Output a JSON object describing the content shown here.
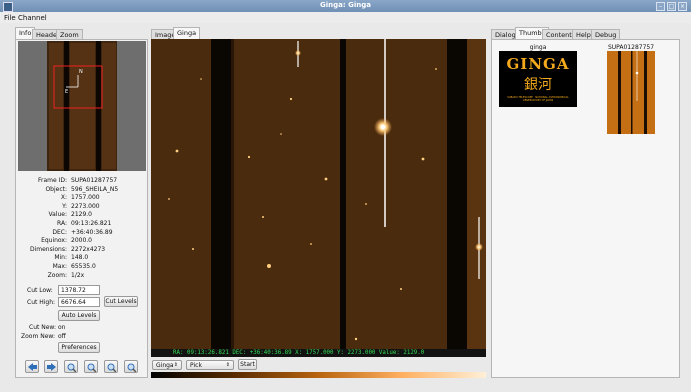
{
  "window": {
    "title": "Ginga: Ginga"
  },
  "menu": {
    "items": [
      "File",
      "Channel"
    ]
  },
  "left_tabs": [
    "Info",
    "Header",
    "Zoom"
  ],
  "info": {
    "rows": [
      {
        "k": "Frame ID:",
        "v": "SUPA01287757"
      },
      {
        "k": "Object:",
        "v": "596_SHEILA_N5"
      },
      {
        "k": "X:",
        "v": "1757.000"
      },
      {
        "k": "Y:",
        "v": "2273.000"
      },
      {
        "k": "Value:",
        "v": "2129.0"
      },
      {
        "k": "RA:",
        "v": "09:13:26.821"
      },
      {
        "k": "DEC:",
        "v": "+36:40:36.89"
      },
      {
        "k": "Equinox:",
        "v": "2000.0"
      },
      {
        "k": "Dimensions:",
        "v": "2272x4273"
      },
      {
        "k": "Min:",
        "v": "148.0"
      },
      {
        "k": "Max:",
        "v": "65535.0"
      },
      {
        "k": "Zoom:",
        "v": "1/2x"
      }
    ],
    "cut_low_label": "Cut Low:",
    "cut_low_value": "1378.72",
    "cut_high_label": "Cut High:",
    "cut_high_value": "6676.64",
    "cut_levels_button": "Cut Levels",
    "auto_levels_button": "Auto Levels",
    "cut_new_label": "Cut New:",
    "cut_new_value": "on",
    "zoom_new_label": "Zoom New:",
    "zoom_new_value": "off",
    "preferences_button": "Preferences",
    "compass": {
      "n": "N",
      "e": "E"
    }
  },
  "toolbar_icons": [
    "arrow-left-icon",
    "arrow-right-icon",
    "zoom-in-icon",
    "zoom-out-icon",
    "zoom-fit-icon",
    "zoom-reset-icon"
  ],
  "center_tabs": [
    "Image",
    "Ginga"
  ],
  "status": {
    "text": "RA: 09:13:26.821  DEC: +36:40:36.89  X: 1757.000  Y: 2273.000  Value: 2129.0"
  },
  "center_controls": {
    "channel_select": "Ginga",
    "mode_select": "Pick",
    "start_button": "Start"
  },
  "right_tabs": [
    "Dialogs",
    "Thumbs",
    "Contents",
    "Help",
    "Debug"
  ],
  "thumbs": [
    {
      "label": "ginga",
      "logo_text": "GINGA",
      "logo_kanji": "銀河",
      "logo_sub": "SUBARU TELESCOPE · NATIONAL ASTRONOMICAL OBSERVATORY OF JAPAN"
    },
    {
      "label": "SUPA01287757"
    }
  ],
  "colors": {
    "accent": "#6f8fb5",
    "image_bg": "#4a2a0c",
    "status_text": "#33dd55",
    "colorbar_start": "#000000",
    "colorbar_end": "#ffb060"
  }
}
